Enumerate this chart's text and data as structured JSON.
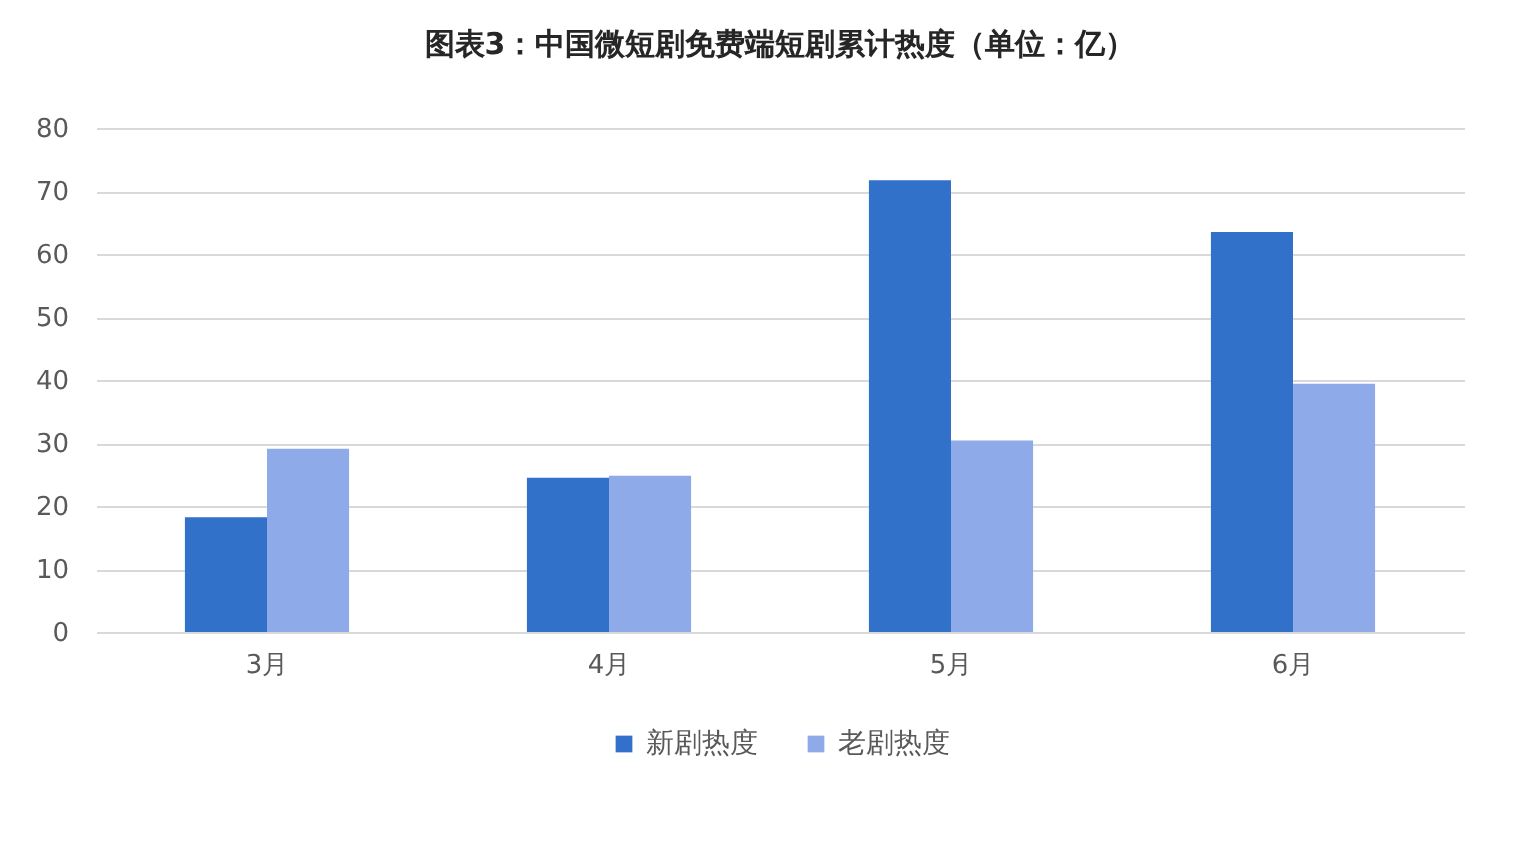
{
  "chart_data": {
    "type": "bar",
    "title": "图表3：中国微短剧免费端短剧累计热度（单位：亿）",
    "categories": [
      "3月",
      "4月",
      "5月",
      "6月"
    ],
    "series": [
      {
        "name": "新剧热度",
        "color": "#3271c9",
        "values": [
          18.2,
          24.5,
          71.7,
          63.5
        ]
      },
      {
        "name": "老剧热度",
        "color": "#8eaae9",
        "values": [
          29.1,
          24.8,
          30.4,
          39.4
        ]
      }
    ],
    "ylim": [
      0,
      80
    ],
    "yticks": [
      0,
      10,
      20,
      30,
      40,
      50,
      60,
      70,
      80
    ],
    "grid": "y",
    "legend": "bottom"
  }
}
